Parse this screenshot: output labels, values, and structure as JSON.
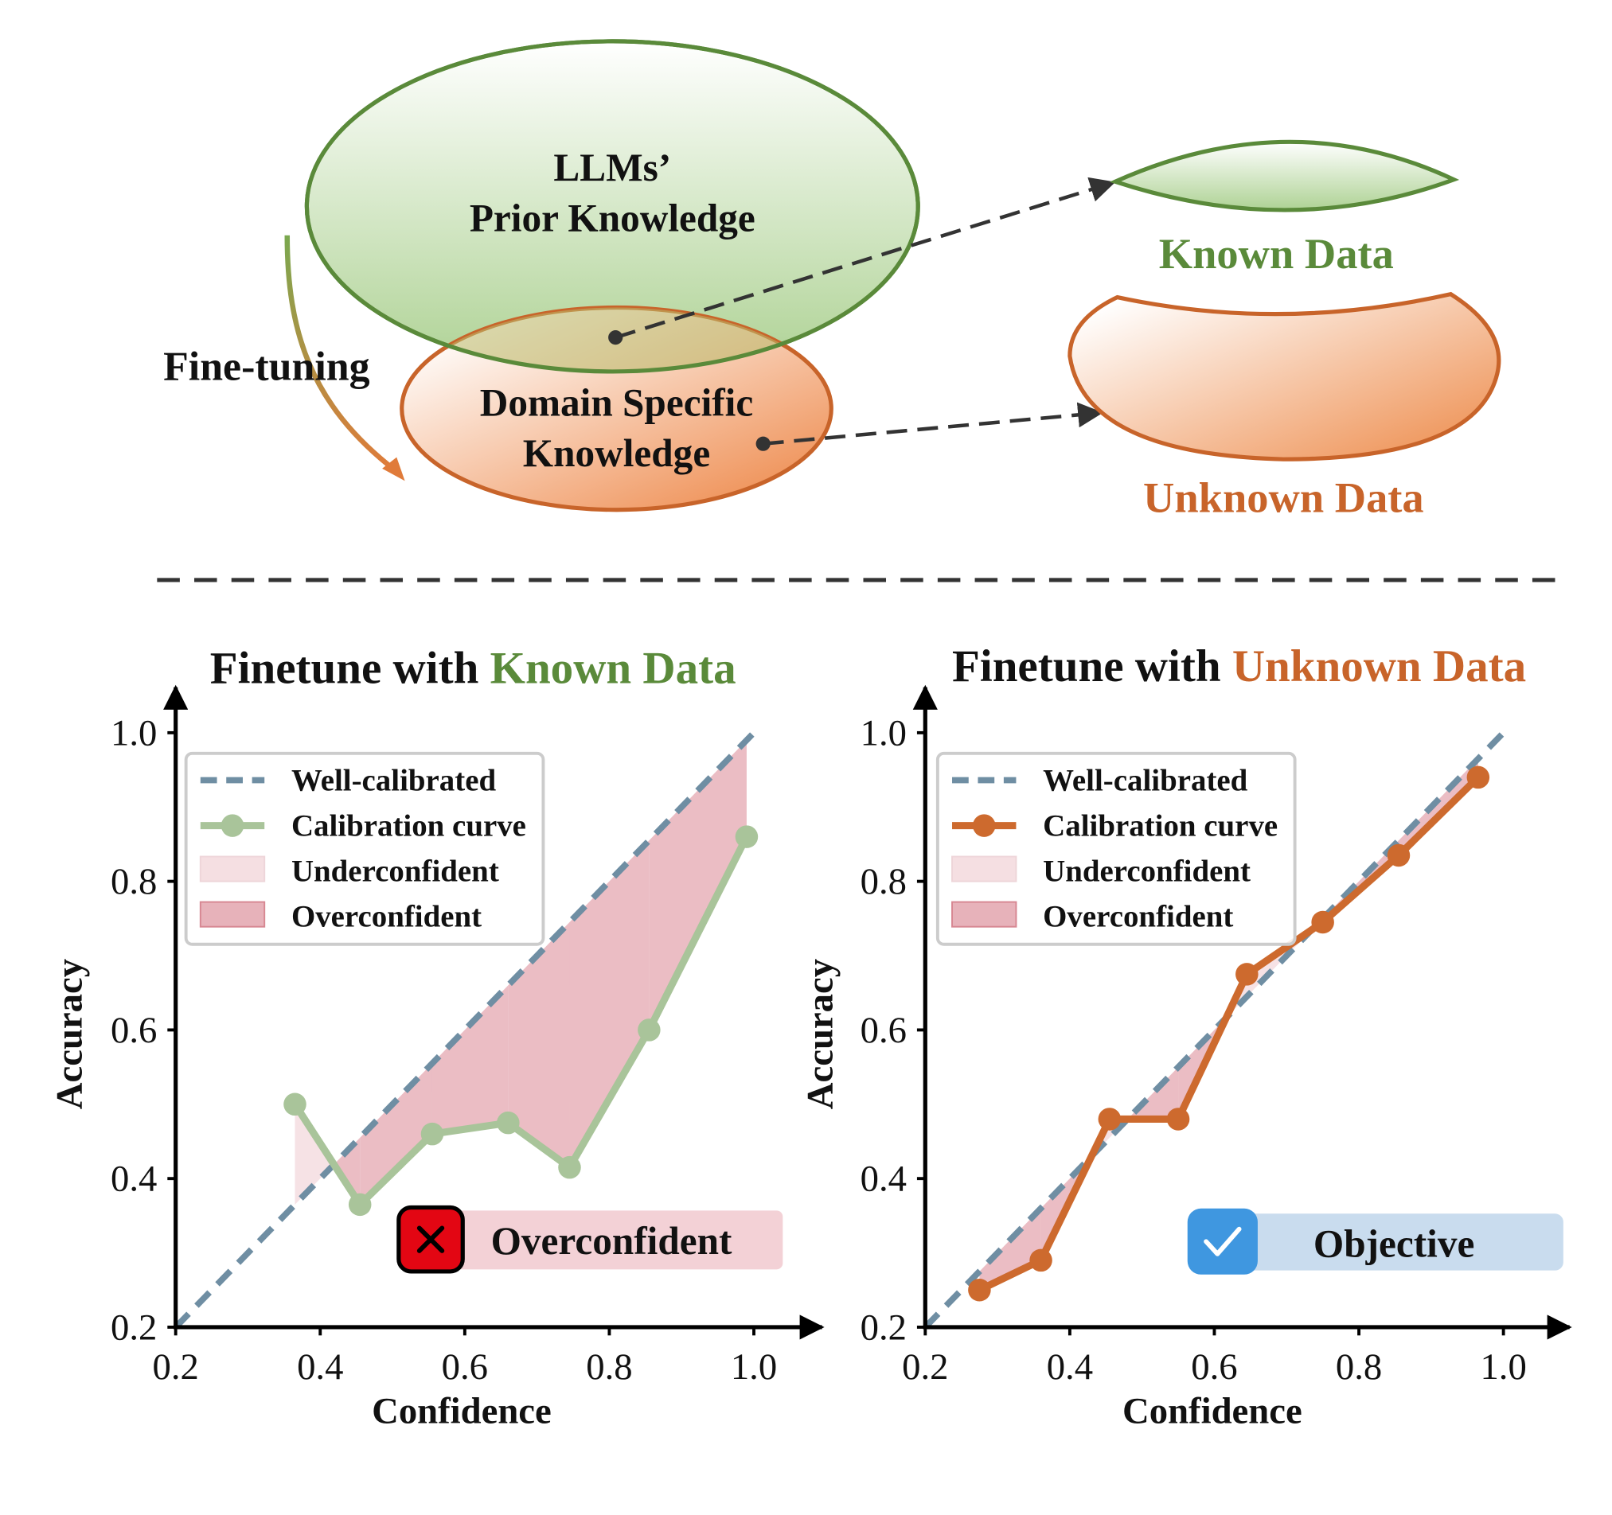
{
  "top": {
    "prior_line1": "LLMs’",
    "prior_line2": "Prior Knowledge",
    "domain_line1": "Domain Specific",
    "domain_line2": "Knowledge",
    "finetuning": "Fine-tuning",
    "known_data": "Known Data",
    "unknown_data": "Unknown Data"
  },
  "colors": {
    "green": "#5a8a3a",
    "orange": "#c8642a",
    "diagonal": "#6f8ea3",
    "fill": "#e7b2ba",
    "green_curve": "#a9c49a",
    "orange_curve": "#cd6a2e"
  },
  "legend": {
    "well": "Well-calibrated",
    "curve": "Calibration curve",
    "under": "Underconfident",
    "over": "Overconfident"
  },
  "chart_data": [
    {
      "type": "line",
      "title_prefix": "Finetune with ",
      "title_highlight": "Known Data",
      "xlabel": "Confidence",
      "ylabel": "Accuracy",
      "xlim": [
        0.2,
        1.08
      ],
      "ylim": [
        0.2,
        1.08
      ],
      "xticks": [
        "0.2",
        "0.4",
        "0.6",
        "0.8",
        "1.0"
      ],
      "yticks": [
        "0.2",
        "0.4",
        "0.6",
        "0.8",
        "1.0"
      ],
      "x": [
        0.365,
        0.455,
        0.555,
        0.66,
        0.745,
        0.855,
        0.99
      ],
      "y": [
        0.5,
        0.365,
        0.46,
        0.475,
        0.415,
        0.6,
        0.86
      ],
      "badge_text": "Overconfident",
      "badge_icon": "cross-icon",
      "legend_position": "upper-left"
    },
    {
      "type": "line",
      "title_prefix": "Finetune with ",
      "title_highlight": "Unknown Data",
      "xlabel": "Confidence",
      "ylabel": "Accuracy",
      "xlim": [
        0.2,
        1.08
      ],
      "ylim": [
        0.2,
        1.08
      ],
      "xticks": [
        "0.2",
        "0.4",
        "0.6",
        "0.8",
        "1.0"
      ],
      "yticks": [
        "0.2",
        "0.4",
        "0.6",
        "0.8",
        "1.0"
      ],
      "x": [
        0.275,
        0.36,
        0.455,
        0.55,
        0.645,
        0.75,
        0.855,
        0.965
      ],
      "y": [
        0.25,
        0.29,
        0.48,
        0.48,
        0.675,
        0.745,
        0.835,
        0.94
      ],
      "badge_text": "Objective",
      "badge_icon": "check-icon",
      "legend_position": "upper-left"
    }
  ]
}
